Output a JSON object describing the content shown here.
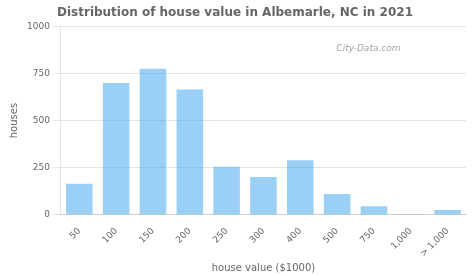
{
  "chart_data": {
    "type": "bar",
    "title": "Distribution of house value in Albemarle, NC in 2021",
    "xlabel": "house value ($1000)",
    "ylabel": "houses",
    "categories": [
      "50",
      "100",
      "150",
      "200",
      "250",
      "300",
      "400",
      "500",
      "750",
      "1,000",
      "> 1,000"
    ],
    "values": [
      165,
      700,
      775,
      665,
      255,
      200,
      290,
      110,
      45,
      2,
      25
    ],
    "ylim": [
      0,
      1000
    ],
    "yticks": [
      0,
      250,
      500,
      750,
      1000
    ],
    "grid": true,
    "annotations": [
      {
        "text": "City-Data.com"
      }
    ]
  }
}
